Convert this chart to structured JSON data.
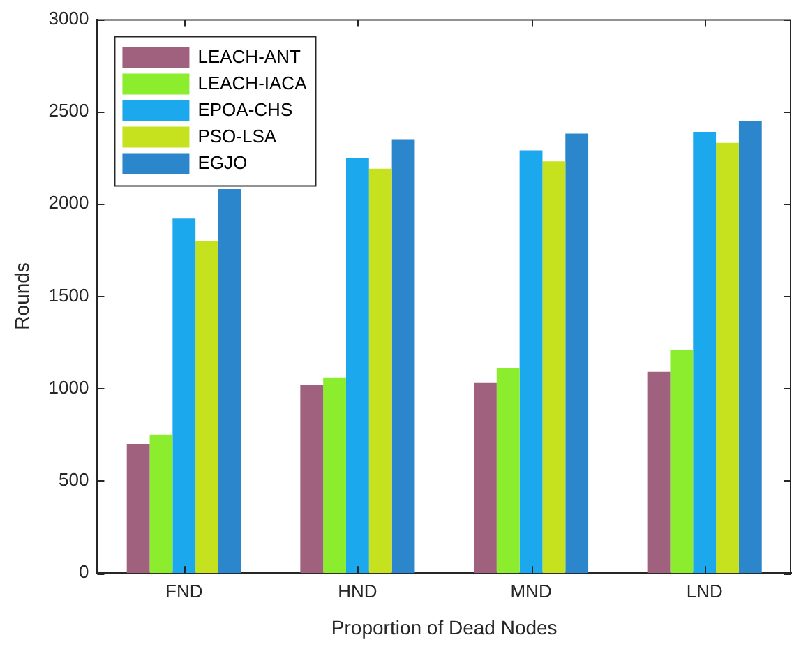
{
  "chart_data": {
    "type": "bar",
    "xlabel": "Proportion of Dead Nodes",
    "ylabel": "Rounds",
    "categories": [
      "FND",
      "HND",
      "MND",
      "LND"
    ],
    "series": [
      {
        "name": "LEACH-ANT",
        "color": "#a0617f",
        "values": [
          700,
          1020,
          1030,
          1090
        ]
      },
      {
        "name": "LEACH-IACA",
        "color": "#8ced2e",
        "values": [
          750,
          1060,
          1110,
          1210
        ]
      },
      {
        "name": "EPOA-CHS",
        "color": "#1ba8ec",
        "values": [
          1920,
          2250,
          2290,
          2390
        ]
      },
      {
        "name": "PSO-LSA",
        "color": "#c6e11e",
        "values": [
          1800,
          2190,
          2230,
          2330
        ]
      },
      {
        "name": "EGJO",
        "color": "#2b86cc",
        "values": [
          2080,
          2350,
          2380,
          2450
        ]
      }
    ],
    "ylim": [
      0,
      3000
    ],
    "yticks": [
      0,
      500,
      1000,
      1500,
      2000,
      2500,
      3000
    ],
    "grid": false,
    "legend": "top left"
  }
}
